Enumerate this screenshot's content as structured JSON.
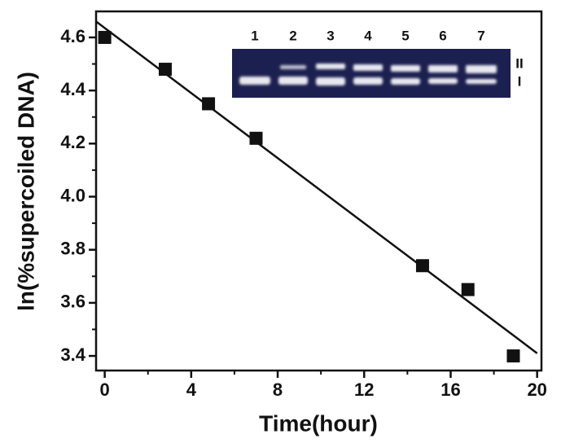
{
  "chart_data": {
    "type": "scatter",
    "x_label": "Time(hour)",
    "y_label": "ln(%supercoiled DNA)",
    "x": [
      0,
      2.8,
      4.8,
      7,
      14.7,
      16.8,
      18.9
    ],
    "values": [
      4.6,
      4.48,
      4.35,
      4.22,
      3.74,
      3.65,
      3.4
    ],
    "color": "#111111",
    "fit": {
      "x": [
        -0.4,
        20
      ],
      "y": [
        4.66,
        3.41
      ],
      "color": "#111111"
    },
    "xlim": [
      -0.4,
      20.2
    ],
    "ylim": [
      3.345,
      4.698
    ],
    "xticks": [
      0,
      4,
      8,
      12,
      16,
      20
    ],
    "yticks": [
      3.4,
      3.6,
      3.8,
      {
        "value": 4,
        "label": "4.0"
      },
      4.2,
      4.4,
      4.6
    ],
    "xminor": [
      2,
      6,
      10,
      14,
      18
    ],
    "yminor": [
      3.5,
      3.7,
      3.9,
      4.1,
      4.3,
      4.5
    ],
    "inset": {
      "lanes": [
        "1",
        "2",
        "3",
        "4",
        "5",
        "6",
        "7"
      ],
      "bands": [
        "II",
        "I"
      ]
    }
  }
}
